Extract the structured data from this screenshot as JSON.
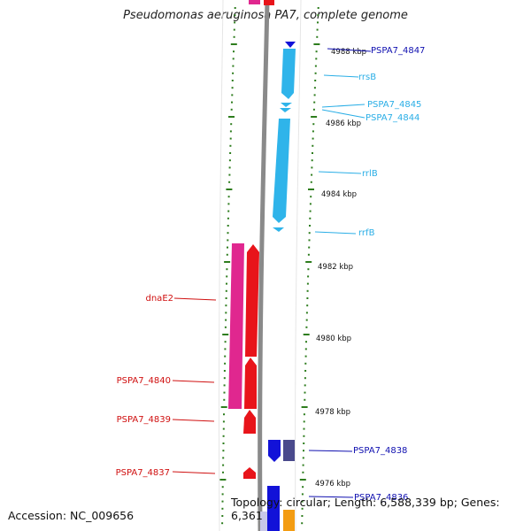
{
  "title": "Pseudomonas aeruginosa PA7, complete genome",
  "footer": {
    "accession": "Accession: NC_009656",
    "topology": "Topology: circular; Length: 6,588,339 bp; Genes: 6,361"
  },
  "colors": {
    "backbone": "#8a8a8a",
    "ticks": "#2e7d1e",
    "red": "#e8141a",
    "magenta": "#e0278f",
    "cyan": "#2fb4ea",
    "blue": "#1212d8",
    "navy": "#4a4a8c",
    "orange": "#f39c12"
  },
  "scale_labels": [
    "4988 kbp",
    "4986 kbp",
    "4984 kbp",
    "4982 kbp",
    "4980 kbp",
    "4978 kbp",
    "4976 kbp"
  ],
  "gene_labels": [
    {
      "text": "PSPA7_4847",
      "color": "#1010b0"
    },
    {
      "text": "rrsB",
      "color": "#2aaee6"
    },
    {
      "text": "PSPA7_4845",
      "color": "#2aaee6"
    },
    {
      "text": "PSPA7_4844",
      "color": "#2aaee6"
    },
    {
      "text": "rrlB",
      "color": "#2aaee6"
    },
    {
      "text": "rrfB",
      "color": "#2aaee6"
    },
    {
      "text": "dnaE2",
      "color": "#d01010"
    },
    {
      "text": "PSPA7_4840",
      "color": "#d01010"
    },
    {
      "text": "PSPA7_4839",
      "color": "#d01010"
    },
    {
      "text": "PSPA7_4837",
      "color": "#d01010"
    },
    {
      "text": "PSPA7_4838",
      "color": "#1010b0"
    },
    {
      "text": "PSPA7_4836",
      "color": "#1010b0"
    }
  ]
}
